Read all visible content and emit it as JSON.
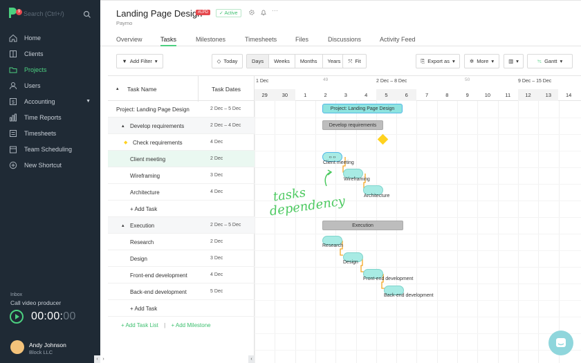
{
  "sidebar": {
    "search_placeholder": "Search (Ctrl+/)",
    "logo_badge": "9",
    "items": [
      {
        "label": "Home",
        "icon": "home-icon"
      },
      {
        "label": "Clients",
        "icon": "clients-icon"
      },
      {
        "label": "Projects",
        "icon": "projects-icon",
        "active": true
      },
      {
        "label": "Users",
        "icon": "users-icon"
      },
      {
        "label": "Accounting",
        "icon": "accounting-icon"
      },
      {
        "label": "Time Reports",
        "icon": "time-reports-icon"
      },
      {
        "label": "Timesheets",
        "icon": "timesheets-icon"
      },
      {
        "label": "Team Scheduling",
        "icon": "team-scheduling-icon"
      },
      {
        "label": "New Shortcut",
        "icon": "plus-circle-icon"
      }
    ],
    "inbox_label": "Inbox",
    "inbox_task": "Call video producer",
    "timer_main": "00:00:",
    "timer_sec": "00",
    "user_name": "Andy Johnson",
    "user_company": "Block LLC"
  },
  "header": {
    "title": "Landing Page Design",
    "badge": "#LPD",
    "status": "Active",
    "subtitle": "Paymo"
  },
  "tabs": [
    "Overview",
    "Tasks",
    "Milestones",
    "Timesheets",
    "Files",
    "Discussions",
    "Activity Feed"
  ],
  "toolbar": {
    "add_filter": "Add Filter",
    "today": "Today",
    "views": [
      "Days",
      "Weeks",
      "Months",
      "Years"
    ],
    "fit": "Fit",
    "export": "Export as",
    "more": "More",
    "gantt": "Gantt"
  },
  "list": {
    "col_name": "Task Name",
    "col_dates": "Task Dates",
    "rows": [
      {
        "name": "Project: Landing Page Design",
        "dates": "2 Dec – 5 Dec"
      },
      {
        "name": "Develop requirements",
        "dates": "2 Dec – 4 Dec"
      },
      {
        "name": "Check requirements",
        "dates": "4 Dec"
      },
      {
        "name": "Client meeting",
        "dates": "2 Dec"
      },
      {
        "name": "Wireframing",
        "dates": "3 Dec"
      },
      {
        "name": "Architecture",
        "dates": "4 Dec"
      },
      {
        "name": "+ Add Task",
        "dates": ""
      },
      {
        "name": "Execution",
        "dates": "2 Dec – 5 Dec"
      },
      {
        "name": "Research",
        "dates": "2 Dec"
      },
      {
        "name": "Design",
        "dates": "3 Dec"
      },
      {
        "name": "Front-end development",
        "dates": "4 Dec"
      },
      {
        "name": "Back-end development",
        "dates": "5 Dec"
      },
      {
        "name": "+ Add Task",
        "dates": ""
      }
    ],
    "add_task_list": "+ Add Task List",
    "add_milestone": "+ Add Milestone"
  },
  "gantt": {
    "weeks": [
      {
        "label": "1 Dec"
      },
      {
        "label": "2 Dec – 8 Dec",
        "num": "49"
      },
      {
        "label": "9 Dec – 15 Dec",
        "num": "50"
      }
    ],
    "days": [
      "29",
      "30",
      "1",
      "2",
      "3",
      "4",
      "5",
      "6",
      "7",
      "8",
      "9",
      "10",
      "11",
      "12",
      "13",
      "14"
    ],
    "bars": {
      "project": "Project: Landing Page Design",
      "develop": "Develop requirements",
      "execution": "Execution"
    },
    "task_labels": [
      "Client meeting",
      "Wireframing",
      "Architecture",
      "Research",
      "Design",
      "Front-end development",
      "Back-end development"
    ],
    "annotation_line1": "tasks",
    "annotation_line2": "dependency",
    "colors": {
      "accent": "#4cd080",
      "dependency": "#f5a623",
      "milestone": "#ffd21f",
      "task_bar": "#a8ebe4"
    }
  }
}
